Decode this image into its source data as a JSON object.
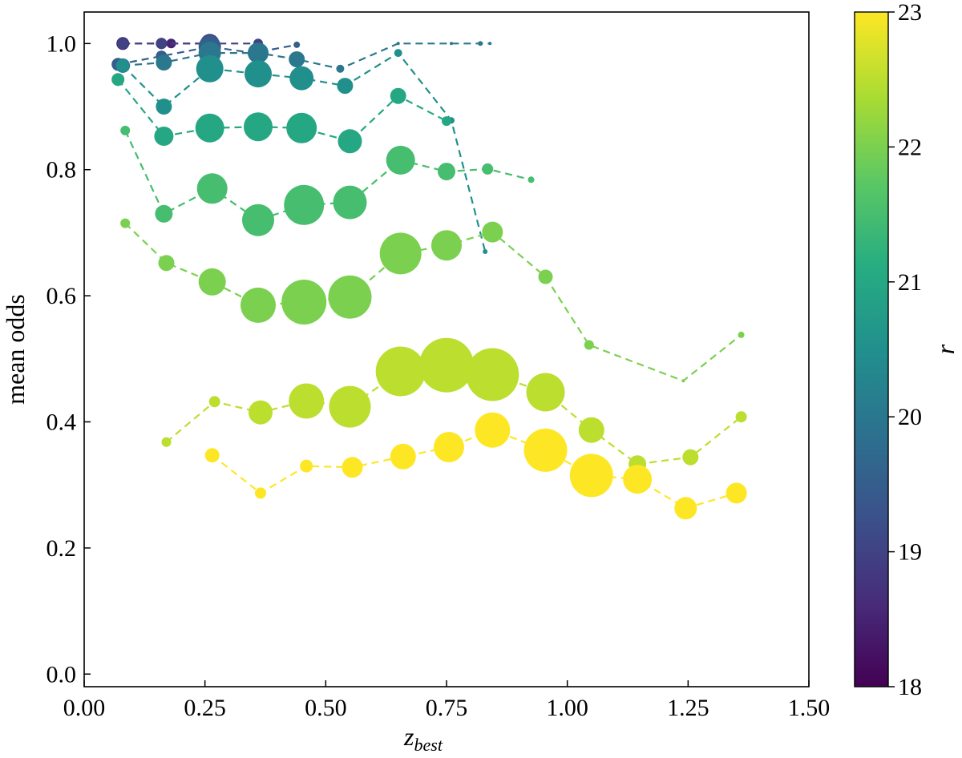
{
  "chart_data": {
    "type": "scatter",
    "title": "",
    "xlabel": "z",
    "xlabel_subscript": "best",
    "ylabel": "mean odds",
    "xlim": [
      0.0,
      1.5
    ],
    "ylim": [
      -0.02,
      1.05
    ],
    "xticks": [
      "0.00",
      "0.25",
      "0.50",
      "0.75",
      "1.00",
      "1.25",
      "1.50"
    ],
    "yticks": [
      "0.0",
      "0.2",
      "0.4",
      "0.6",
      "0.8",
      "1.0"
    ],
    "grid": false,
    "colorbar": {
      "label": "r",
      "range": [
        18,
        23
      ],
      "ticks": [
        "18",
        "19",
        "20",
        "21",
        "22",
        "23"
      ],
      "colormap": "viridis"
    },
    "series": [
      {
        "name": "r 18.5",
        "r": 18.5,
        "points": [
          {
            "x": 0.08,
            "y": 1.0,
            "size": 8
          },
          {
            "x": 0.16,
            "y": 1.0,
            "size": 7
          },
          {
            "x": 0.18,
            "y": 1.0,
            "size": 6
          },
          {
            "x": 0.25,
            "y": 1.0,
            "size": 6
          },
          {
            "x": 0.26,
            "y": 1.0,
            "size": 7
          }
        ]
      },
      {
        "name": "r 19.0",
        "r": 19.0,
        "points": [
          {
            "x": 0.08,
            "y": 1.0,
            "size": 7
          },
          {
            "x": 0.16,
            "y": 1.0,
            "size": 7
          },
          {
            "x": 0.26,
            "y": 1.0,
            "size": 12
          },
          {
            "x": 0.36,
            "y": 1.0,
            "size": 6
          }
        ]
      },
      {
        "name": "r 19.5",
        "r": 19.5,
        "points": [
          {
            "x": 0.07,
            "y": 0.967,
            "size": 8
          },
          {
            "x": 0.16,
            "y": 0.98,
            "size": 7
          },
          {
            "x": 0.26,
            "y": 0.995,
            "size": 14
          },
          {
            "x": 0.35,
            "y": 0.985,
            "size": 7
          },
          {
            "x": 0.44,
            "y": 0.998,
            "size": 4
          }
        ]
      },
      {
        "name": "r 20.0",
        "r": 20.0,
        "points": [
          {
            "x": 0.08,
            "y": 0.965,
            "size": 9
          },
          {
            "x": 0.165,
            "y": 0.97,
            "size": 10
          },
          {
            "x": 0.26,
            "y": 0.985,
            "size": 14
          },
          {
            "x": 0.36,
            "y": 0.985,
            "size": 13
          },
          {
            "x": 0.44,
            "y": 0.975,
            "size": 10
          },
          {
            "x": 0.53,
            "y": 0.96,
            "size": 5
          },
          {
            "x": 0.65,
            "y": 1.0,
            "size": 2
          },
          {
            "x": 0.76,
            "y": 1.0,
            "size": 2
          },
          {
            "x": 0.82,
            "y": 1.0,
            "size": 3
          },
          {
            "x": 0.84,
            "y": 1.0,
            "size": 2
          }
        ]
      },
      {
        "name": "r 20.5",
        "r": 20.5,
        "points": [
          {
            "x": 0.08,
            "y": 0.965,
            "size": 8
          },
          {
            "x": 0.165,
            "y": 0.9,
            "size": 10
          },
          {
            "x": 0.26,
            "y": 0.96,
            "size": 17
          },
          {
            "x": 0.36,
            "y": 0.952,
            "size": 17
          },
          {
            "x": 0.45,
            "y": 0.945,
            "size": 15
          },
          {
            "x": 0.54,
            "y": 0.933,
            "size": 10
          },
          {
            "x": 0.65,
            "y": 0.985,
            "size": 5
          },
          {
            "x": 0.76,
            "y": 0.878,
            "size": 4
          },
          {
            "x": 0.83,
            "y": 0.67,
            "size": 3
          }
        ]
      },
      {
        "name": "r 21.0",
        "r": 21.0,
        "points": [
          {
            "x": 0.07,
            "y": 0.943,
            "size": 8
          },
          {
            "x": 0.165,
            "y": 0.853,
            "size": 12
          },
          {
            "x": 0.26,
            "y": 0.866,
            "size": 18
          },
          {
            "x": 0.36,
            "y": 0.868,
            "size": 18
          },
          {
            "x": 0.45,
            "y": 0.866,
            "size": 19
          },
          {
            "x": 0.55,
            "y": 0.845,
            "size": 15
          },
          {
            "x": 0.65,
            "y": 0.917,
            "size": 10
          },
          {
            "x": 0.75,
            "y": 0.877,
            "size": 6
          }
        ]
      },
      {
        "name": "r 21.5",
        "r": 21.5,
        "points": [
          {
            "x": 0.085,
            "y": 0.862,
            "size": 6
          },
          {
            "x": 0.165,
            "y": 0.73,
            "size": 11
          },
          {
            "x": 0.265,
            "y": 0.77,
            "size": 19
          },
          {
            "x": 0.36,
            "y": 0.72,
            "size": 20
          },
          {
            "x": 0.455,
            "y": 0.744,
            "size": 25
          },
          {
            "x": 0.55,
            "y": 0.748,
            "size": 21
          },
          {
            "x": 0.655,
            "y": 0.815,
            "size": 18
          },
          {
            "x": 0.75,
            "y": 0.797,
            "size": 11
          },
          {
            "x": 0.835,
            "y": 0.801,
            "size": 7
          },
          {
            "x": 0.925,
            "y": 0.784,
            "size": 4
          }
        ]
      },
      {
        "name": "r 22.0",
        "r": 22.0,
        "points": [
          {
            "x": 0.085,
            "y": 0.715,
            "size": 6
          },
          {
            "x": 0.17,
            "y": 0.652,
            "size": 10
          },
          {
            "x": 0.265,
            "y": 0.622,
            "size": 17
          },
          {
            "x": 0.36,
            "y": 0.585,
            "size": 22
          },
          {
            "x": 0.455,
            "y": 0.59,
            "size": 28
          },
          {
            "x": 0.55,
            "y": 0.598,
            "size": 27
          },
          {
            "x": 0.655,
            "y": 0.667,
            "size": 26
          },
          {
            "x": 0.75,
            "y": 0.68,
            "size": 19
          },
          {
            "x": 0.845,
            "y": 0.701,
            "size": 13
          },
          {
            "x": 0.955,
            "y": 0.63,
            "size": 9
          },
          {
            "x": 1.045,
            "y": 0.522,
            "size": 6
          },
          {
            "x": 1.24,
            "y": 0.465,
            "size": 2
          },
          {
            "x": 1.36,
            "y": 0.538,
            "size": 4
          }
        ]
      },
      {
        "name": "r 22.5",
        "r": 22.5,
        "points": [
          {
            "x": 0.17,
            "y": 0.368,
            "size": 6
          },
          {
            "x": 0.27,
            "y": 0.432,
            "size": 7
          },
          {
            "x": 0.365,
            "y": 0.415,
            "size": 15
          },
          {
            "x": 0.46,
            "y": 0.433,
            "size": 22
          },
          {
            "x": 0.55,
            "y": 0.424,
            "size": 26
          },
          {
            "x": 0.655,
            "y": 0.48,
            "size": 31
          },
          {
            "x": 0.75,
            "y": 0.49,
            "size": 34
          },
          {
            "x": 0.845,
            "y": 0.475,
            "size": 33
          },
          {
            "x": 0.955,
            "y": 0.447,
            "size": 24
          },
          {
            "x": 1.05,
            "y": 0.387,
            "size": 16
          },
          {
            "x": 1.145,
            "y": 0.333,
            "size": 11
          },
          {
            "x": 1.255,
            "y": 0.344,
            "size": 10
          },
          {
            "x": 1.36,
            "y": 0.408,
            "size": 7
          }
        ]
      },
      {
        "name": "r 23.0",
        "r": 23.0,
        "points": [
          {
            "x": 0.265,
            "y": 0.347,
            "size": 9
          },
          {
            "x": 0.365,
            "y": 0.287,
            "size": 7
          },
          {
            "x": 0.46,
            "y": 0.33,
            "size": 8
          },
          {
            "x": 0.555,
            "y": 0.328,
            "size": 13
          },
          {
            "x": 0.66,
            "y": 0.345,
            "size": 16
          },
          {
            "x": 0.755,
            "y": 0.36,
            "size": 19
          },
          {
            "x": 0.845,
            "y": 0.387,
            "size": 22
          },
          {
            "x": 0.955,
            "y": 0.355,
            "size": 27
          },
          {
            "x": 1.05,
            "y": 0.315,
            "size": 27
          },
          {
            "x": 1.145,
            "y": 0.309,
            "size": 18
          },
          {
            "x": 1.245,
            "y": 0.263,
            "size": 14
          },
          {
            "x": 1.35,
            "y": 0.287,
            "size": 13
          }
        ]
      }
    ]
  }
}
